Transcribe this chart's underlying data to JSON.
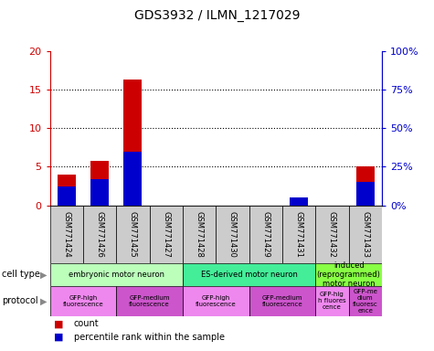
{
  "title": "GDS3932 / ILMN_1217029",
  "samples": [
    "GSM771424",
    "GSM771426",
    "GSM771425",
    "GSM771427",
    "GSM771428",
    "GSM771430",
    "GSM771429",
    "GSM771431",
    "GSM771432",
    "GSM771433"
  ],
  "count_values": [
    4.0,
    5.7,
    16.3,
    0.0,
    0.0,
    0.0,
    0.0,
    1.0,
    0.0,
    5.0
  ],
  "percentile_values": [
    12.0,
    17.0,
    35.0,
    0.0,
    0.0,
    0.0,
    0.0,
    5.0,
    0.0,
    15.0
  ],
  "ylim_left": [
    0,
    20
  ],
  "ylim_right": [
    0,
    100
  ],
  "yticks_left": [
    0,
    5,
    10,
    15,
    20
  ],
  "yticks_right": [
    0,
    25,
    50,
    75,
    100
  ],
  "ytick_labels_right": [
    "0%",
    "25%",
    "50%",
    "75%",
    "100%"
  ],
  "bar_color_count": "#cc0000",
  "bar_color_pct": "#0000cc",
  "bar_width": 0.55,
  "cell_type_groups": [
    {
      "label": "embryonic motor neuron",
      "start": 0,
      "end": 3,
      "color": "#bbffbb"
    },
    {
      "label": "ES-derived motor neuron",
      "start": 4,
      "end": 7,
      "color": "#44ee99"
    },
    {
      "label": "induced\n(reprogrammed)\nmotor neuron",
      "start": 8,
      "end": 9,
      "color": "#88ff44"
    }
  ],
  "protocol_groups": [
    {
      "label": "GFP-high\nfluorescence",
      "start": 0,
      "end": 1,
      "color": "#ee88ee"
    },
    {
      "label": "GFP-medium\nfluorescence",
      "start": 2,
      "end": 3,
      "color": "#cc55cc"
    },
    {
      "label": "GFP-high\nfluorescence",
      "start": 4,
      "end": 5,
      "color": "#ee88ee"
    },
    {
      "label": "GFP-medium\nfluorescence",
      "start": 6,
      "end": 7,
      "color": "#cc55cc"
    },
    {
      "label": "GFP-hig\nh fluores\ncence",
      "start": 8,
      "end": 8,
      "color": "#ee88ee"
    },
    {
      "label": "GFP-me\ndium\nfluoresc\nence",
      "start": 9,
      "end": 9,
      "color": "#cc55cc"
    }
  ],
  "legend_count_label": "count",
  "legend_pct_label": "percentile rank within the sample",
  "cell_type_label": "cell type",
  "protocol_label": "protocol",
  "left_ylabel_color": "#cc0000",
  "right_ylabel_color": "#0000cc",
  "sample_box_color": "#cccccc",
  "dotline_color": "#555555"
}
